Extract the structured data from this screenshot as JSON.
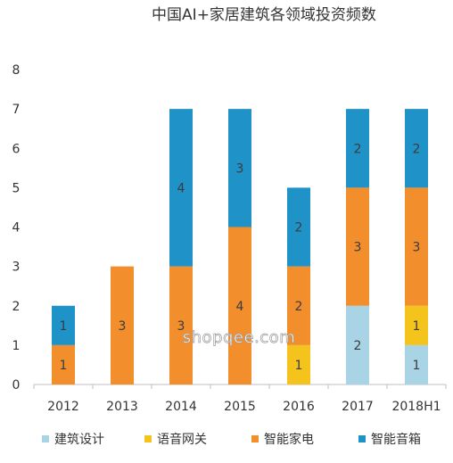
{
  "chart_data": {
    "type": "bar",
    "stacked": true,
    "title": "中国AI+家居建筑各领域投资频数",
    "categories": [
      "2012",
      "2013",
      "2014",
      "2015",
      "2016",
      "2017",
      "2018H1"
    ],
    "series": [
      {
        "name": "建筑设计",
        "color": "#a9d4e6",
        "values": [
          0,
          0,
          0,
          0,
          0,
          2,
          1
        ]
      },
      {
        "name": "语音网关",
        "color": "#f4c31c",
        "values": [
          0,
          0,
          0,
          0,
          1,
          0,
          1
        ]
      },
      {
        "name": "智能家电",
        "color": "#f28e2b",
        "values": [
          1,
          3,
          3,
          4,
          2,
          3,
          3
        ]
      },
      {
        "name": "智能音箱",
        "color": "#1f93c8",
        "values": [
          1,
          0,
          4,
          3,
          2,
          2,
          2
        ]
      }
    ],
    "ylim": [
      0,
      8
    ],
    "yticks": [
      0,
      1,
      2,
      3,
      4,
      5,
      6,
      7,
      8
    ],
    "xlabel": "",
    "ylabel": "",
    "grid": false,
    "legend_position": "bottom"
  },
  "watermark": "shopqee.com"
}
